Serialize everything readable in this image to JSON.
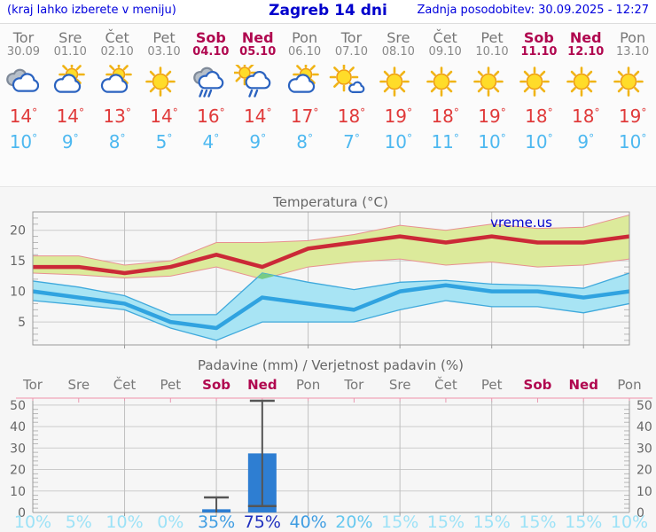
{
  "header": {
    "menu_hint": "(kraj lahko izberete v meniju)",
    "title": "Zagreb 14 dni",
    "updated": "Zadnja posodobitev: 30.09.2025 - 12:27"
  },
  "strip": {
    "degree_symbol": "°",
    "days": [
      {
        "name": "Tor",
        "date": "30.09",
        "weekend": false,
        "icon": "cloudy",
        "tmax": 14,
        "tmin": 10
      },
      {
        "name": "Sre",
        "date": "01.10",
        "weekend": false,
        "icon": "partly-cloudy",
        "tmax": 14,
        "tmin": 9
      },
      {
        "name": "Čet",
        "date": "02.10",
        "weekend": false,
        "icon": "partly-cloudy",
        "tmax": 13,
        "tmin": 8
      },
      {
        "name": "Pet",
        "date": "03.10",
        "weekend": false,
        "icon": "sunny",
        "tmax": 14,
        "tmin": 5
      },
      {
        "name": "Sob",
        "date": "04.10",
        "weekend": true,
        "icon": "rain",
        "tmax": 16,
        "tmin": 4
      },
      {
        "name": "Ned",
        "date": "05.10",
        "weekend": true,
        "icon": "sun-rain",
        "tmax": 14,
        "tmin": 9
      },
      {
        "name": "Pon",
        "date": "06.10",
        "weekend": false,
        "icon": "partly-cloudy",
        "tmax": 17,
        "tmin": 8
      },
      {
        "name": "Tor",
        "date": "07.10",
        "weekend": false,
        "icon": "mostly-sunny",
        "tmax": 18,
        "tmin": 7
      },
      {
        "name": "Sre",
        "date": "08.10",
        "weekend": false,
        "icon": "sunny",
        "tmax": 19,
        "tmin": 10
      },
      {
        "name": "Čet",
        "date": "09.10",
        "weekend": false,
        "icon": "sunny",
        "tmax": 18,
        "tmin": 11
      },
      {
        "name": "Pet",
        "date": "10.10",
        "weekend": false,
        "icon": "sunny",
        "tmax": 19,
        "tmin": 10
      },
      {
        "name": "Sob",
        "date": "11.10",
        "weekend": true,
        "icon": "sunny",
        "tmax": 18,
        "tmin": 10
      },
      {
        "name": "Ned",
        "date": "12.10",
        "weekend": true,
        "icon": "sunny",
        "tmax": 18,
        "tmin": 9
      },
      {
        "name": "Pon",
        "date": "13.10",
        "weekend": false,
        "icon": "sunny",
        "tmax": 19,
        "tmin": 10
      }
    ]
  },
  "branding": {
    "watermark": "vreme.us"
  },
  "chart_data": [
    {
      "type": "line",
      "title": "Temperatura (°C)",
      "categories": [
        "30.09",
        "01.10",
        "02.10",
        "03.10",
        "04.10",
        "05.10",
        "06.10",
        "07.10",
        "08.10",
        "09.10",
        "10.10",
        "11.10",
        "12.10",
        "13.10"
      ],
      "ylim": [
        1.25,
        23
      ],
      "yticks": [
        5,
        10,
        15,
        20
      ],
      "grid": true,
      "series": [
        {
          "name": "max-temp",
          "values": [
            14,
            14,
            13,
            14,
            16,
            14,
            17,
            18,
            19,
            18,
            19,
            18,
            18,
            19
          ]
        },
        {
          "name": "max-temp-range-upper",
          "values": [
            15.8,
            15.8,
            14.3,
            15,
            18,
            18,
            18.3,
            19.3,
            20.8,
            20,
            21,
            20.3,
            20.5,
            22.5
          ]
        },
        {
          "name": "max-temp-range-lower",
          "values": [
            13,
            12.7,
            12.2,
            12.5,
            14,
            12,
            14,
            14.8,
            15.3,
            14.3,
            14.8,
            14,
            14.3,
            15.3
          ]
        },
        {
          "name": "min-temp",
          "values": [
            10,
            9,
            8,
            5,
            4,
            9,
            8,
            7,
            10,
            11,
            10,
            10,
            9,
            10
          ]
        },
        {
          "name": "min-temp-range-upper",
          "values": [
            11.7,
            10.7,
            9.3,
            6.2,
            6.2,
            13,
            11.5,
            10.3,
            11.5,
            11.8,
            11.2,
            11,
            10.5,
            13
          ]
        },
        {
          "name": "min-temp-range-lower",
          "values": [
            8.5,
            7.8,
            7,
            4,
            2,
            5,
            5,
            5,
            7,
            8.5,
            7.5,
            7.5,
            6.5,
            8
          ]
        }
      ]
    },
    {
      "type": "bar",
      "title": "Padavine (mm) / Verjetnost padavin (%)",
      "categories": [
        "Tor",
        "Sre",
        "Čet",
        "Pet",
        "Sob",
        "Ned",
        "Pon",
        "Tor",
        "Sre",
        "Čet",
        "Pet",
        "Sob",
        "Ned",
        "Pon"
      ],
      "weekend": [
        false,
        false,
        false,
        false,
        true,
        true,
        false,
        false,
        false,
        false,
        false,
        true,
        true,
        false
      ],
      "values": [
        0,
        0,
        0,
        0,
        1.5,
        27.5,
        0,
        0,
        0,
        0,
        0,
        0,
        0,
        0
      ],
      "whisker_lo": [
        null,
        null,
        null,
        null,
        0,
        3,
        null,
        null,
        null,
        null,
        null,
        null,
        null,
        null
      ],
      "whisker_hi": [
        null,
        null,
        null,
        null,
        7,
        52,
        null,
        null,
        null,
        null,
        null,
        null,
        null,
        null
      ],
      "probabilities": [
        10,
        5,
        10,
        0,
        35,
        75,
        40,
        20,
        15,
        15,
        15,
        15,
        15,
        10
      ],
      "ylim": [
        0,
        52
      ],
      "yticks": [
        0,
        10,
        20,
        30,
        40,
        50
      ],
      "grid": true
    }
  ],
  "colors": {
    "header_blue": "#0000dd",
    "day_gray": "#777777",
    "weekend_red": "#b0074f",
    "tmax_red": "#e03a3a",
    "tmin_blue": "#4db8f0",
    "line_red": "#cb2937",
    "line_blue": "#30a3e0",
    "band_green": "#dcea9b",
    "band_green_edge": "#e89090",
    "band_blue": "#a8e4f4",
    "band_blue_edge": "#3fa9dc",
    "band_overlap_green": "#77cb85",
    "bar_blue": "#2e7ed2",
    "whisker_gray": "#555555",
    "pink_line": "#f2b3c3",
    "pink_tick": "#e898b0",
    "grid_gray": "#cbcbcb",
    "axis_gray": "#999999",
    "tick_label_gray": "#666666",
    "prob_low": "#9ce2f7",
    "prob_mid_low": "#66c8ef",
    "prob_mid": "#3f9de2",
    "prob_high": "#1f2fbe"
  }
}
